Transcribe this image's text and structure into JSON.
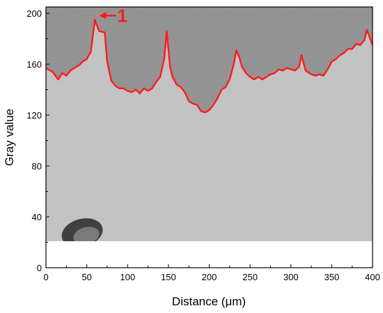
{
  "chart_data": {
    "type": "line",
    "xlabel": "Distance (μm)",
    "ylabel": "Gray value",
    "xlim": [
      0,
      400
    ],
    "ylim": [
      0,
      205
    ],
    "xticks": [
      0,
      50,
      100,
      150,
      200,
      250,
      300,
      350,
      400
    ],
    "yticks": [
      0,
      40,
      80,
      120,
      160,
      200
    ],
    "grid": false,
    "legend": "none",
    "colors": {
      "line": "#ff1a1a",
      "background_image_light": "#c4c4c4",
      "background_image_dark": "#8e8e8e",
      "annotation": "#ff1a1a"
    },
    "annotation": {
      "text": "1",
      "x": 60,
      "y": 196
    },
    "x": [
      0,
      8,
      15,
      20,
      25,
      30,
      40,
      45,
      50,
      55,
      60,
      65,
      72,
      75,
      80,
      85,
      90,
      95,
      100,
      105,
      110,
      115,
      120,
      125,
      130,
      135,
      140,
      145,
      148,
      152,
      155,
      160,
      165,
      170,
      175,
      180,
      185,
      190,
      195,
      200,
      205,
      210,
      215,
      220,
      225,
      230,
      233,
      237,
      240,
      245,
      250,
      255,
      260,
      265,
      270,
      275,
      280,
      285,
      290,
      295,
      300,
      305,
      310,
      313,
      318,
      325,
      330,
      335,
      340,
      345,
      350,
      355,
      360,
      365,
      370,
      375,
      380,
      385,
      390,
      393,
      396,
      400
    ],
    "y": [
      157,
      154,
      148,
      153,
      151,
      155,
      159,
      162,
      164,
      170,
      195,
      186,
      185,
      162,
      147,
      143,
      141,
      141,
      139,
      138,
      140,
      137,
      141,
      139,
      141,
      146,
      150,
      165,
      186,
      158,
      150,
      144,
      142,
      138,
      131,
      129,
      128,
      123,
      122,
      124,
      128,
      133,
      140,
      142,
      148,
      160,
      171,
      165,
      158,
      153,
      150,
      148,
      150,
      148,
      150,
      152,
      153,
      156,
      155,
      157,
      156,
      155,
      158,
      167,
      155,
      152,
      151,
      152,
      151,
      156,
      162,
      164,
      167,
      169,
      172,
      172,
      176,
      175,
      179,
      187,
      182,
      175
    ]
  }
}
